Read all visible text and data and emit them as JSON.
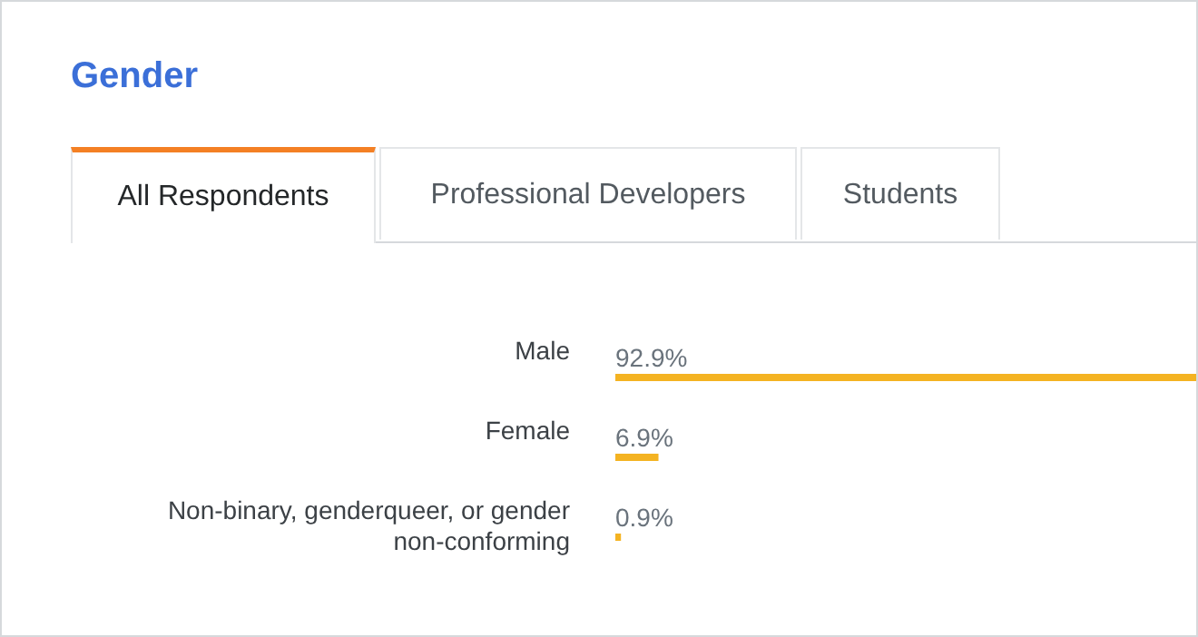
{
  "chart_data": {
    "type": "bar",
    "orientation": "horizontal",
    "title": "Gender",
    "annotations": [
      "All Respondents",
      "Professional Developers",
      "Students"
    ],
    "categories": [
      "Male",
      "Female",
      "Non-binary, genderqueer, or gender non-conforming"
    ],
    "values": [
      92.9,
      6.9,
      0.9
    ],
    "value_labels": [
      "92.9%",
      "6.9%",
      "0.9%"
    ],
    "color": "#f4b322"
  }
}
